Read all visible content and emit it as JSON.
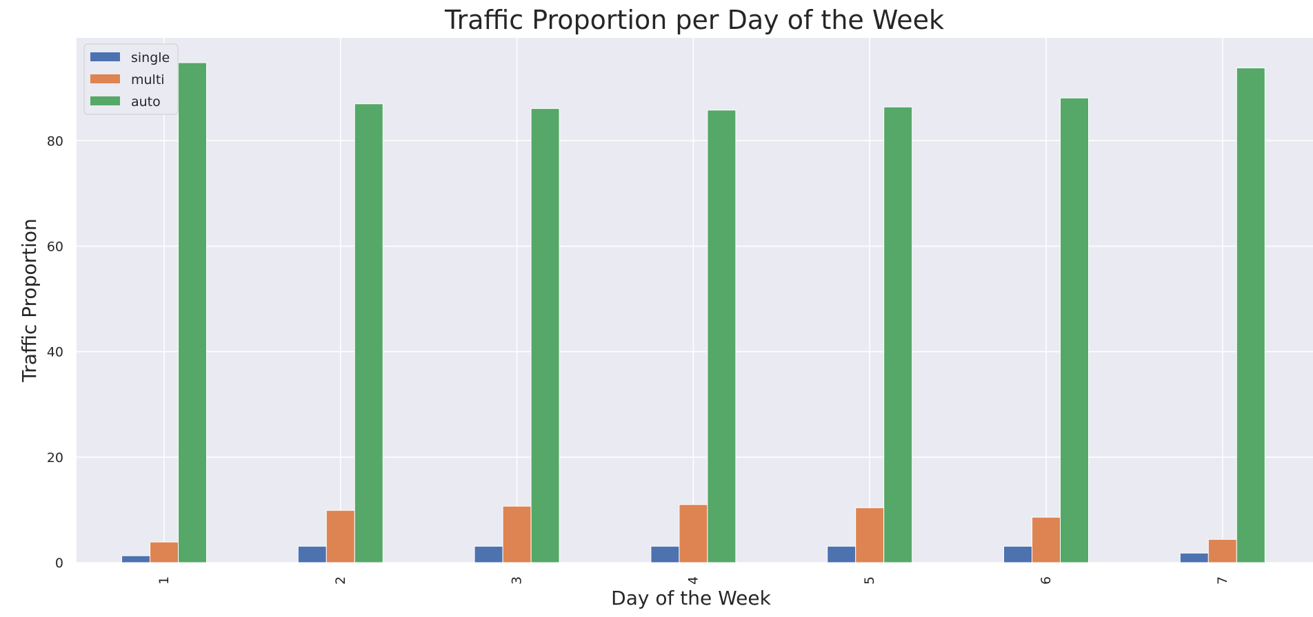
{
  "chart_data": {
    "type": "bar",
    "title": "Traffic Proportion per Day of the Week",
    "xlabel": "Day of the Week",
    "ylabel": "Traffic Proportion",
    "categories": [
      "1",
      "2",
      "3",
      "4",
      "5",
      "6",
      "7"
    ],
    "series": [
      {
        "name": "single",
        "color": "#4c72b0",
        "values": [
          1.3,
          3.1,
          3.1,
          3.1,
          3.1,
          3.1,
          1.8
        ]
      },
      {
        "name": "multi",
        "color": "#dd8452",
        "values": [
          3.9,
          9.9,
          10.7,
          11.0,
          10.4,
          8.6,
          4.4
        ]
      },
      {
        "name": "auto",
        "color": "#55a868",
        "values": [
          94.8,
          87.0,
          86.1,
          85.8,
          86.4,
          88.1,
          93.8
        ]
      }
    ],
    "yticks": [
      0,
      20,
      40,
      60,
      80
    ],
    "ylim": [
      0,
      99.5
    ],
    "grid": true,
    "legend_position": "top-left",
    "background_color": "#eaeaf2",
    "grid_color": "#ffffff",
    "text_color": "#262626"
  }
}
